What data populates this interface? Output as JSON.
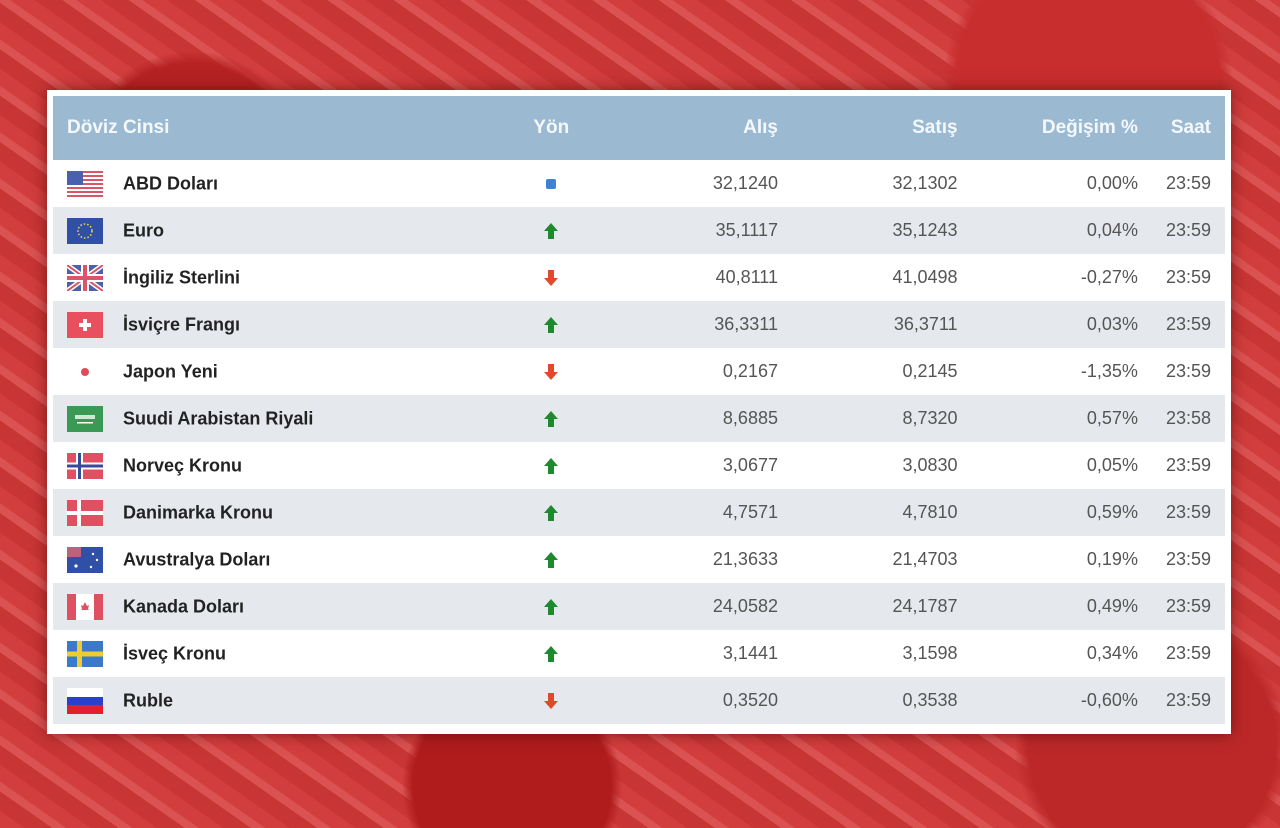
{
  "table": {
    "headers": {
      "currency": "Döviz Cinsi",
      "direction": "Yön",
      "buy": "Alış",
      "sell": "Satış",
      "change": "Değişim %",
      "time": "Saat"
    },
    "rows": [
      {
        "name": "ABD Doları",
        "flag": "us-flag-icon",
        "direction": "neutral",
        "buy": "32,1240",
        "sell": "32,1302",
        "change": "0,00%",
        "time": "23:59"
      },
      {
        "name": "Euro",
        "flag": "eu-flag-icon",
        "direction": "up",
        "buy": "35,1117",
        "sell": "35,1243",
        "change": "0,04%",
        "time": "23:59"
      },
      {
        "name": "İngiliz Sterlini",
        "flag": "uk-flag-icon",
        "direction": "down",
        "buy": "40,8111",
        "sell": "41,0498",
        "change": "-0,27%",
        "time": "23:59"
      },
      {
        "name": "İsviçre Frangı",
        "flag": "ch-flag-icon",
        "direction": "up",
        "buy": "36,3311",
        "sell": "36,3711",
        "change": "0,03%",
        "time": "23:59"
      },
      {
        "name": "Japon Yeni",
        "flag": "jp-flag-icon",
        "direction": "down",
        "buy": "0,2167",
        "sell": "0,2145",
        "change": "-1,35%",
        "time": "23:59"
      },
      {
        "name": "Suudi Arabistan Riyali",
        "flag": "sa-flag-icon",
        "direction": "up",
        "buy": "8,6885",
        "sell": "8,7320",
        "change": "0,57%",
        "time": "23:58"
      },
      {
        "name": "Norveç Kronu",
        "flag": "no-flag-icon",
        "direction": "up",
        "buy": "3,0677",
        "sell": "3,0830",
        "change": "0,05%",
        "time": "23:59"
      },
      {
        "name": "Danimarka Kronu",
        "flag": "dk-flag-icon",
        "direction": "up",
        "buy": "4,7571",
        "sell": "4,7810",
        "change": "0,59%",
        "time": "23:59"
      },
      {
        "name": "Avustralya Doları",
        "flag": "au-flag-icon",
        "direction": "up",
        "buy": "21,3633",
        "sell": "21,4703",
        "change": "0,19%",
        "time": "23:59"
      },
      {
        "name": "Kanada Doları",
        "flag": "ca-flag-icon",
        "direction": "up",
        "buy": "24,0582",
        "sell": "24,1787",
        "change": "0,49%",
        "time": "23:59"
      },
      {
        "name": "İsveç Kronu",
        "flag": "se-flag-icon",
        "direction": "up",
        "buy": "3,1441",
        "sell": "3,1598",
        "change": "0,34%",
        "time": "23:59"
      },
      {
        "name": "Ruble",
        "flag": "ru-flag-icon",
        "direction": "down",
        "buy": "0,3520",
        "sell": "0,3538",
        "change": "-0,60%",
        "time": "23:59"
      }
    ]
  },
  "colors": {
    "header_bg": "#9bbad2",
    "up": "#1e8a2e",
    "down": "#e04a2a",
    "neutral": "#3d82d6"
  }
}
